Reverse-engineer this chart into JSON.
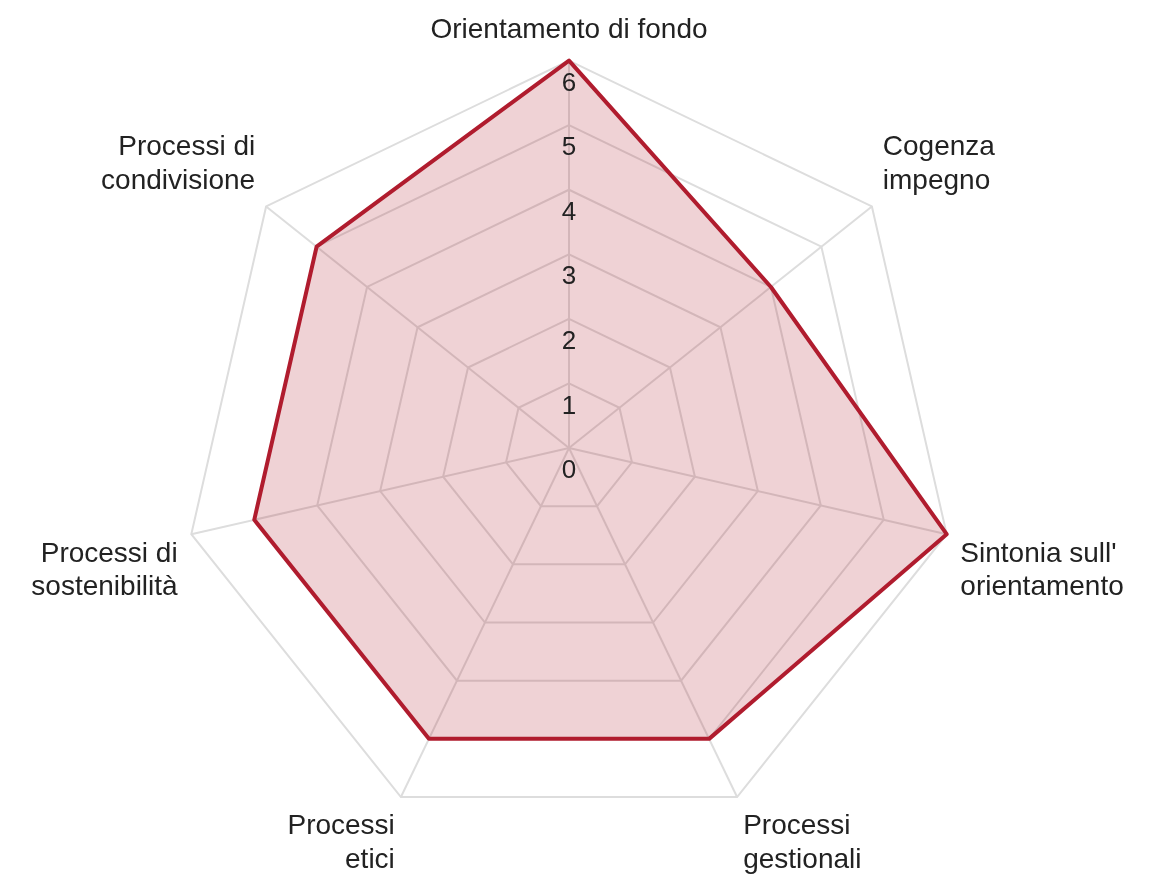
{
  "chart_data": {
    "type": "radar",
    "categories": [
      "Orientamento di fondo",
      "Cogenza\nimpegno",
      "Sintonia sull'\norientamento",
      "Processi\ngestionali",
      "Processi\netici",
      "Processi di\nsostenibilità",
      "Processi di\ncondivisione"
    ],
    "series": [
      {
        "color": "#b01c2e",
        "values": [
          6,
          4,
          6,
          5,
          5,
          5,
          5
        ]
      }
    ],
    "ylim": [
      0,
      6
    ],
    "yticks": [
      0,
      1,
      2,
      3,
      4,
      5,
      6
    ],
    "grid": true,
    "legend": false,
    "marker": "none"
  }
}
